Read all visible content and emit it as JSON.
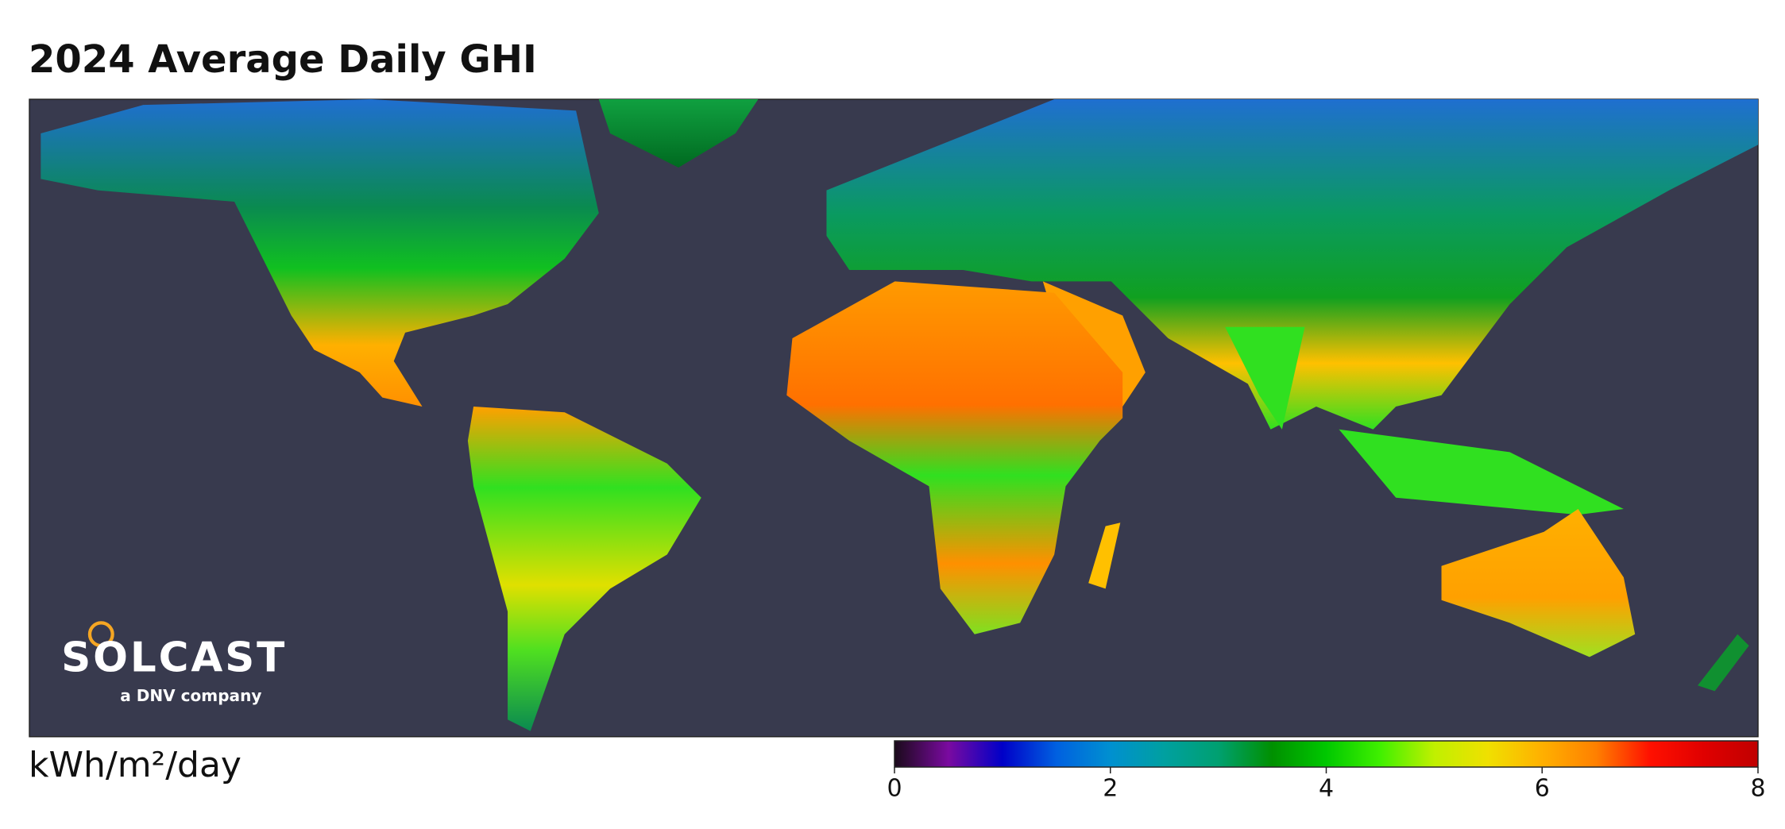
{
  "title": "2024 Average Daily GHI",
  "logo": {
    "name": "SOLCAST",
    "tagline": "a DNV company"
  },
  "colorbar": {
    "label": "kWh/m²/day",
    "lim": [
      0,
      8
    ],
    "ticks": [
      0,
      2,
      4,
      6,
      8
    ],
    "stops": [
      {
        "value": 0,
        "color": "#1a0a1a"
      },
      {
        "value": 0.5,
        "color": "#7a0aa0"
      },
      {
        "value": 1,
        "color": "#0000c8"
      },
      {
        "value": 1.5,
        "color": "#0060e0"
      },
      {
        "value": 2,
        "color": "#0090d0"
      },
      {
        "value": 2.5,
        "color": "#00a0a0"
      },
      {
        "value": 3,
        "color": "#00a070"
      },
      {
        "value": 3.5,
        "color": "#009000"
      },
      {
        "value": 4,
        "color": "#00c800"
      },
      {
        "value": 4.5,
        "color": "#40f000"
      },
      {
        "value": 5,
        "color": "#c0f000"
      },
      {
        "value": 5.5,
        "color": "#f0e000"
      },
      {
        "value": 6,
        "color": "#ffb000"
      },
      {
        "value": 6.5,
        "color": "#ff8000"
      },
      {
        "value": 7,
        "color": "#ff1000"
      },
      {
        "value": 7.5,
        "color": "#e00000"
      },
      {
        "value": 8,
        "color": "#c00000"
      }
    ]
  }
}
